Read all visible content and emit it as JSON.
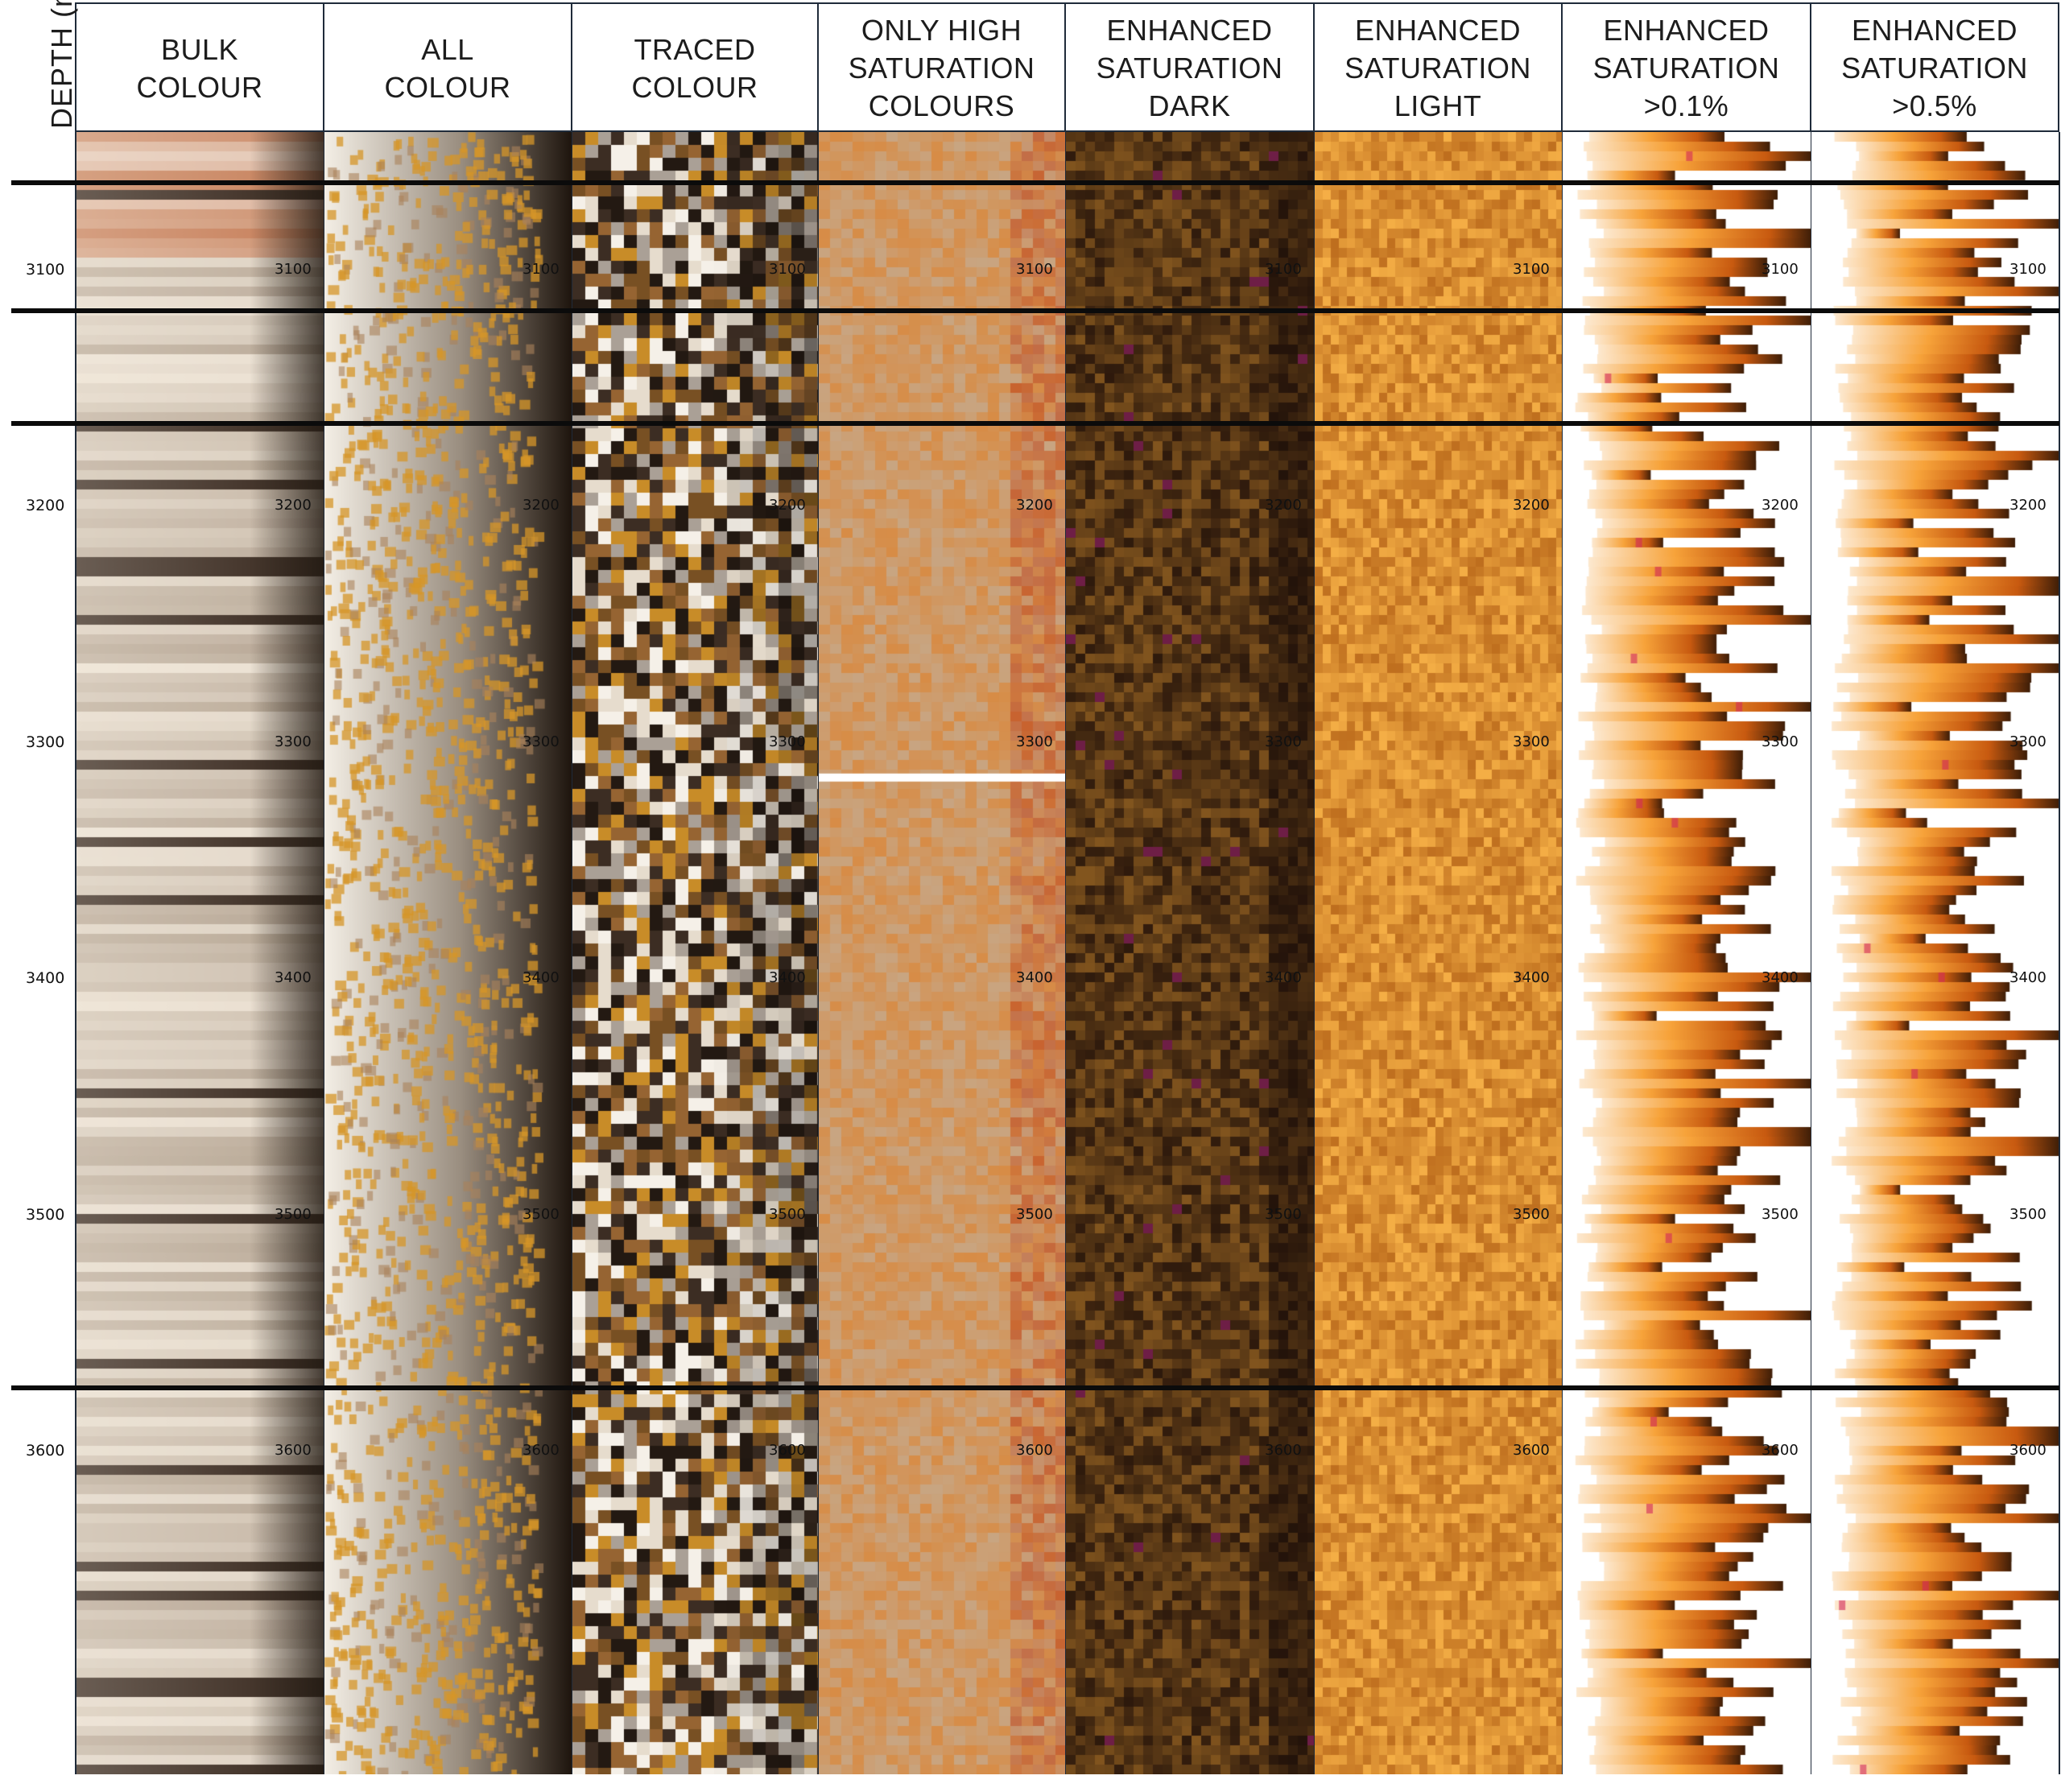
{
  "axis": {
    "title": "DEPTH (m)",
    "ticks": [
      "3100",
      "3200",
      "3300",
      "3400",
      "3500",
      "3600"
    ]
  },
  "columns": [
    {
      "key": "bulk",
      "label": "BULK\nCOLOUR"
    },
    {
      "key": "all",
      "label": "ALL\nCOLOUR"
    },
    {
      "key": "traced",
      "label": "TRACED\nCOLOUR"
    },
    {
      "key": "high",
      "label": "ONLY HIGH\nSATURATION\nCOLOURS"
    },
    {
      "key": "dark",
      "label": "ENHANCED\nSATURATION\nDARK"
    },
    {
      "key": "light",
      "label": "ENHANCED\nSATURATION\nLIGHT"
    },
    {
      "key": "sat01",
      "label": "ENHANCED\nSATURATION\n>0.1%"
    },
    {
      "key": "sat05",
      "label": "ENHANCED\nSATURATION\n>0.5%"
    }
  ],
  "zone_boundaries_m": [
    3063,
    3117,
    3165,
    3573
  ],
  "palette": {
    "frame": "#1f2b3a",
    "separator": "#0b0b0b",
    "beige": "#d8c9ad",
    "orange": "#f5922a",
    "dark_brown": "#4a2c12"
  }
}
